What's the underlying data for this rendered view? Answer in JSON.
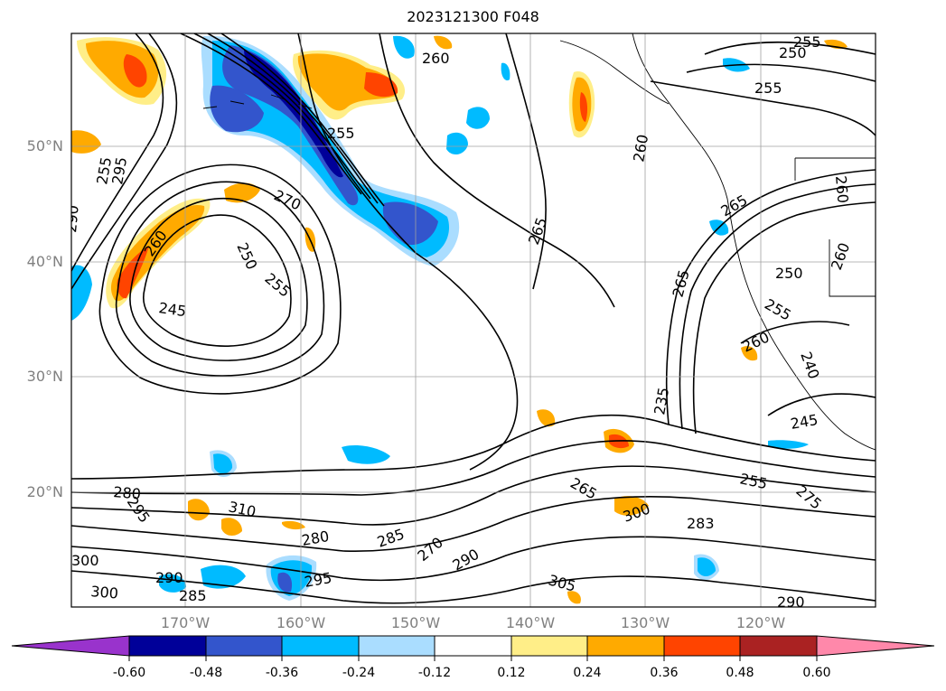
{
  "title": "2023121300 F048",
  "map": {
    "lat_labels": [
      "50°N",
      "40°N",
      "30°N",
      "20°N"
    ],
    "lon_labels": [
      "170°W",
      "160°W",
      "150°W",
      "140°W",
      "130°W",
      "120°W"
    ],
    "contour_labels": [
      "255",
      "250",
      "260",
      "255",
      "255",
      "260",
      "270",
      "250",
      "255",
      "245",
      "260",
      "265",
      "255",
      "295",
      "290",
      "265",
      "260",
      "260",
      "265",
      "255",
      "250",
      "260",
      "240",
      "245",
      "235",
      "255",
      "275",
      "265",
      "283",
      "300",
      "290",
      "305",
      "310",
      "280",
      "285",
      "270",
      "295",
      "280",
      "295",
      "300",
      "290",
      "285",
      "300",
      "290"
    ]
  },
  "colorbar": {
    "ticks": [
      "-0.60",
      "-0.48",
      "-0.36",
      "-0.24",
      "-0.12",
      "0.12",
      "0.24",
      "0.36",
      "0.48",
      "0.60"
    ],
    "colors": [
      "#9933cc",
      "#000099",
      "#3355cc",
      "#00bbff",
      "#aaddff",
      "#ffffff",
      "#ffee88",
      "#ffaa00",
      "#ff4400",
      "#aa2222",
      "#ff88aa"
    ]
  }
}
